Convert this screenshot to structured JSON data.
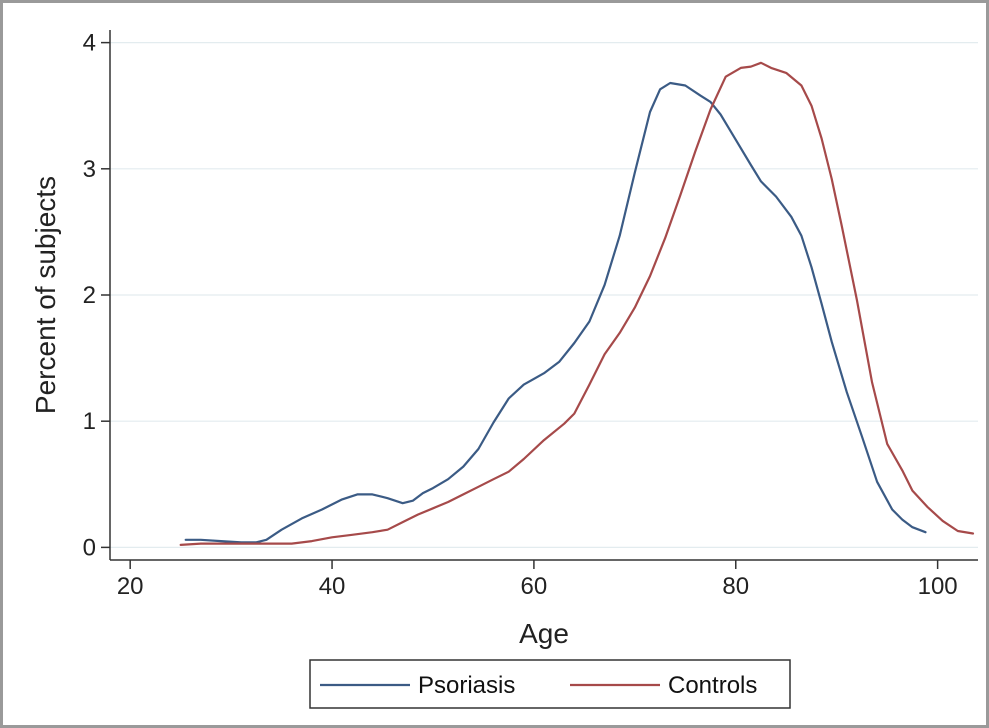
{
  "chart_data": {
    "type": "line",
    "title": "",
    "xlabel": "Age",
    "ylabel": "Percent of subjects",
    "xlim": [
      18,
      104
    ],
    "ylim": [
      -0.1,
      4.1
    ],
    "xticks": [
      20,
      40,
      60,
      80,
      100
    ],
    "yticks": [
      0,
      1,
      2,
      3,
      4
    ],
    "grid": "horizontal",
    "legend_position": "bottom",
    "series": [
      {
        "name": "Psoriasis",
        "color": "#3b5b85",
        "x": [
          25.5,
          27,
          29,
          31,
          32.5,
          33.5,
          35,
          37,
          39,
          41,
          42.5,
          44,
          45.5,
          47,
          48,
          49,
          50,
          51.5,
          53,
          54.5,
          56,
          57.5,
          59,
          61,
          62.5,
          64,
          65.5,
          67,
          68.5,
          70,
          71.5,
          72.5,
          73.5,
          75,
          76.5,
          77.5,
          78.5,
          80,
          81.5,
          82.5,
          84,
          85.5,
          86.5,
          87.5,
          88.5,
          89.5,
          91,
          92.5,
          94,
          95.5,
          96.5,
          97.5,
          98.8
        ],
        "y": [
          0.06,
          0.06,
          0.05,
          0.04,
          0.04,
          0.06,
          0.14,
          0.23,
          0.3,
          0.38,
          0.42,
          0.42,
          0.39,
          0.35,
          0.37,
          0.43,
          0.47,
          0.54,
          0.64,
          0.78,
          0.99,
          1.18,
          1.29,
          1.38,
          1.47,
          1.62,
          1.79,
          2.08,
          2.47,
          2.97,
          3.45,
          3.63,
          3.68,
          3.66,
          3.58,
          3.53,
          3.43,
          3.23,
          3.03,
          2.9,
          2.78,
          2.62,
          2.47,
          2.22,
          1.93,
          1.63,
          1.23,
          0.88,
          0.52,
          0.3,
          0.22,
          0.16,
          0.12
        ]
      },
      {
        "name": "Controls",
        "color": "#a64a4a",
        "x": [
          25,
          27,
          30,
          33,
          36,
          38,
          40,
          42,
          44,
          45.5,
          47,
          48.5,
          50,
          51.5,
          53,
          54.5,
          56,
          57.5,
          59,
          61,
          63,
          64,
          65.5,
          67,
          68.5,
          70,
          71.5,
          73,
          74.5,
          76,
          77.5,
          79,
          80.5,
          81.5,
          82.5,
          83.5,
          85,
          86.5,
          87.5,
          88.5,
          89.5,
          90.5,
          92,
          93.5,
          95,
          96.5,
          97.5,
          99,
          100.5,
          102,
          103.5
        ],
        "y": [
          0.02,
          0.03,
          0.03,
          0.03,
          0.03,
          0.05,
          0.08,
          0.1,
          0.12,
          0.14,
          0.2,
          0.26,
          0.31,
          0.36,
          0.42,
          0.48,
          0.54,
          0.6,
          0.7,
          0.85,
          0.98,
          1.06,
          1.29,
          1.53,
          1.7,
          1.9,
          2.15,
          2.45,
          2.79,
          3.14,
          3.47,
          3.73,
          3.8,
          3.81,
          3.84,
          3.8,
          3.76,
          3.66,
          3.5,
          3.24,
          2.92,
          2.55,
          1.96,
          1.31,
          0.82,
          0.61,
          0.45,
          0.32,
          0.21,
          0.13,
          0.11
        ]
      }
    ]
  }
}
